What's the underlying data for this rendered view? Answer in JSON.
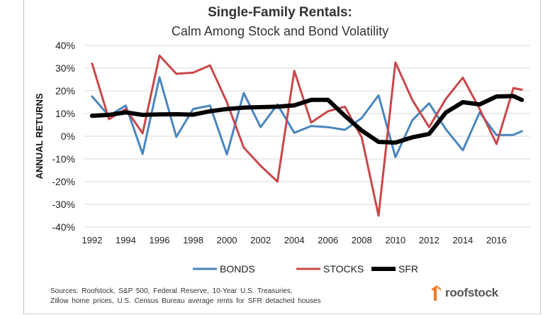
{
  "chart_data": {
    "type": "line",
    "title": "Single-Family Rentals:",
    "subtitle": "Calm Among Stock and Bond Volatility",
    "ylabel": "ANNUAL RETURNS",
    "xlabel": "",
    "ylim": [
      -0.4,
      0.4
    ],
    "yticks": [
      0.4,
      0.3,
      0.2,
      0.1,
      0.0,
      -0.1,
      -0.2,
      -0.3,
      -0.4
    ],
    "ytick_labels": [
      "40%",
      "30%",
      "20%",
      "10%",
      "0%",
      "-10%",
      "-20%",
      "-30%",
      "-40%"
    ],
    "xlim": [
      1992,
      2017
    ],
    "xticks": [
      1992,
      1994,
      1996,
      1998,
      2000,
      2002,
      2004,
      2006,
      2008,
      2010,
      2012,
      2014,
      2016
    ],
    "xtick_labels": [
      "1992",
      "1994",
      "1996",
      "1998",
      "2000",
      "2002",
      "2004",
      "2006",
      "2008",
      "2010",
      "2012",
      "2014",
      "2016"
    ],
    "grid": true,
    "legend_position": "bottom",
    "x": [
      1992,
      1993,
      1994,
      1995,
      1996,
      1997,
      1998,
      1999,
      2000,
      2001,
      2002,
      2003,
      2004,
      2005,
      2006,
      2007,
      2008,
      2009,
      2010,
      2011,
      2012,
      2013,
      2014,
      2015,
      2016,
      2017
    ],
    "series": [
      {
        "name": "BONDS",
        "color": "#4a86c0",
        "values": [
          0.175,
          0.09,
          0.135,
          -0.078,
          0.26,
          -0.003,
          0.12,
          0.135,
          -0.08,
          0.19,
          0.04,
          0.14,
          0.015,
          0.045,
          0.04,
          0.028,
          0.08,
          0.18,
          -0.092,
          0.07,
          0.145,
          0.03,
          -0.062,
          0.105,
          0.005,
          0.006
        ]
      },
      {
        "name": "STOCKS",
        "color": "#c9474a",
        "values": [
          0.32,
          0.075,
          0.12,
          0.013,
          0.355,
          0.275,
          0.28,
          0.312,
          0.15,
          -0.05,
          -0.13,
          -0.2,
          0.288,
          0.06,
          0.11,
          0.13,
          -0.005,
          -0.35,
          0.325,
          0.16,
          0.04,
          0.165,
          0.258,
          0.12,
          -0.034,
          0.212
        ]
      },
      {
        "name": "SFR",
        "color": "#000000",
        "values": [
          0.09,
          0.094,
          0.105,
          0.094,
          0.096,
          0.097,
          0.095,
          0.11,
          0.12,
          0.126,
          0.128,
          0.13,
          0.136,
          0.16,
          0.16,
          0.09,
          0.025,
          -0.025,
          -0.028,
          -0.005,
          0.01,
          0.105,
          0.15,
          0.14,
          0.175,
          0.177
        ]
      }
    ],
    "extra_sfr_point": {
      "x": 2017.5,
      "y": 0.16
    },
    "extra_bonds_point": {
      "x": 2017.5,
      "y": 0.022
    },
    "extra_stocks_point": {
      "x": 2017.5,
      "y": 0.205
    }
  },
  "source": {
    "line1": "Sources:  Roofstock,  S&P 500,  Federal Reserve, 10-Year U.S. Treasuries,",
    "line2": "Zillow home prices,  U.S. Census Bureau  average rents for SFR detached houses"
  },
  "logo": {
    "text": "roofstock",
    "color": "#f07a28"
  }
}
